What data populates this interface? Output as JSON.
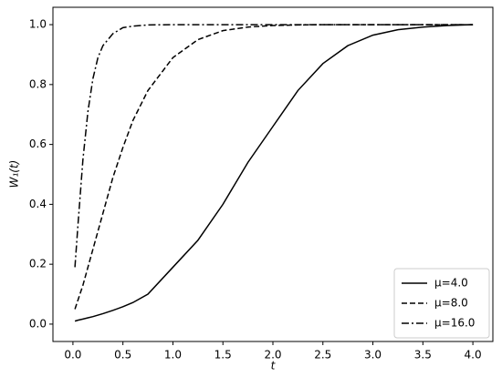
{
  "chart_data": {
    "type": "line",
    "xlabel": "t",
    "ylabel": "W₁(t)",
    "x": [
      0.02,
      0.05,
      0.1,
      0.15,
      0.2,
      0.25,
      0.3,
      0.4,
      0.5,
      0.6,
      0.75,
      1.0,
      1.25,
      1.5,
      1.75,
      2.0,
      2.25,
      2.5,
      2.75,
      3.0,
      3.25,
      3.5,
      3.75,
      4.0
    ],
    "series": [
      {
        "name": "μ=4.0",
        "color": "#000000",
        "linestyle": "solid",
        "values": [
          0.01,
          0.013,
          0.017,
          0.021,
          0.025,
          0.03,
          0.035,
          0.046,
          0.058,
          0.072,
          0.1,
          0.19,
          0.28,
          0.4,
          0.54,
          0.66,
          0.78,
          0.87,
          0.93,
          0.965,
          0.983,
          0.992,
          0.997,
          1.0
        ]
      },
      {
        "name": "μ=8.0",
        "color": "#000000",
        "linestyle": "dashed",
        "values": [
          0.05,
          0.08,
          0.13,
          0.19,
          0.25,
          0.31,
          0.37,
          0.49,
          0.59,
          0.68,
          0.78,
          0.89,
          0.95,
          0.98,
          0.992,
          0.997,
          0.999,
          1.0,
          1.0,
          1.0,
          1.0,
          1.0,
          1.0,
          1.0
        ]
      },
      {
        "name": "μ=16.0",
        "color": "#000000",
        "linestyle": "dashdot",
        "values": [
          0.19,
          0.33,
          0.55,
          0.71,
          0.82,
          0.89,
          0.93,
          0.97,
          0.99,
          0.995,
          0.999,
          1.0,
          1.0,
          1.0,
          1.0,
          1.0,
          1.0,
          1.0,
          1.0,
          1.0,
          1.0,
          1.0,
          1.0,
          1.0
        ]
      }
    ],
    "xlim": [
      -0.2,
      4.2
    ],
    "xticks": [
      {
        "value": 0,
        "label": "0.0"
      },
      {
        "value": 0.5,
        "label": "0.5"
      },
      {
        "value": 1,
        "label": "1.0"
      },
      {
        "value": 1.5,
        "label": "1.5"
      },
      {
        "value": 2,
        "label": "2.0"
      },
      {
        "value": 2.5,
        "label": "2.5"
      },
      {
        "value": 3,
        "label": "3.0"
      },
      {
        "value": 3.5,
        "label": "3.5"
      },
      {
        "value": 4,
        "label": "4.0"
      }
    ],
    "ylim": [
      -0.058,
      1.058
    ],
    "yticks": [
      {
        "value": 0,
        "label": "0.0"
      },
      {
        "value": 0.2,
        "label": "0.2"
      },
      {
        "value": 0.4,
        "label": "0.4"
      },
      {
        "value": 0.6,
        "label": "0.6"
      },
      {
        "value": 0.8,
        "label": "0.8"
      },
      {
        "value": 1,
        "label": "1.0"
      }
    ],
    "grid": false,
    "legend": "lower right"
  }
}
